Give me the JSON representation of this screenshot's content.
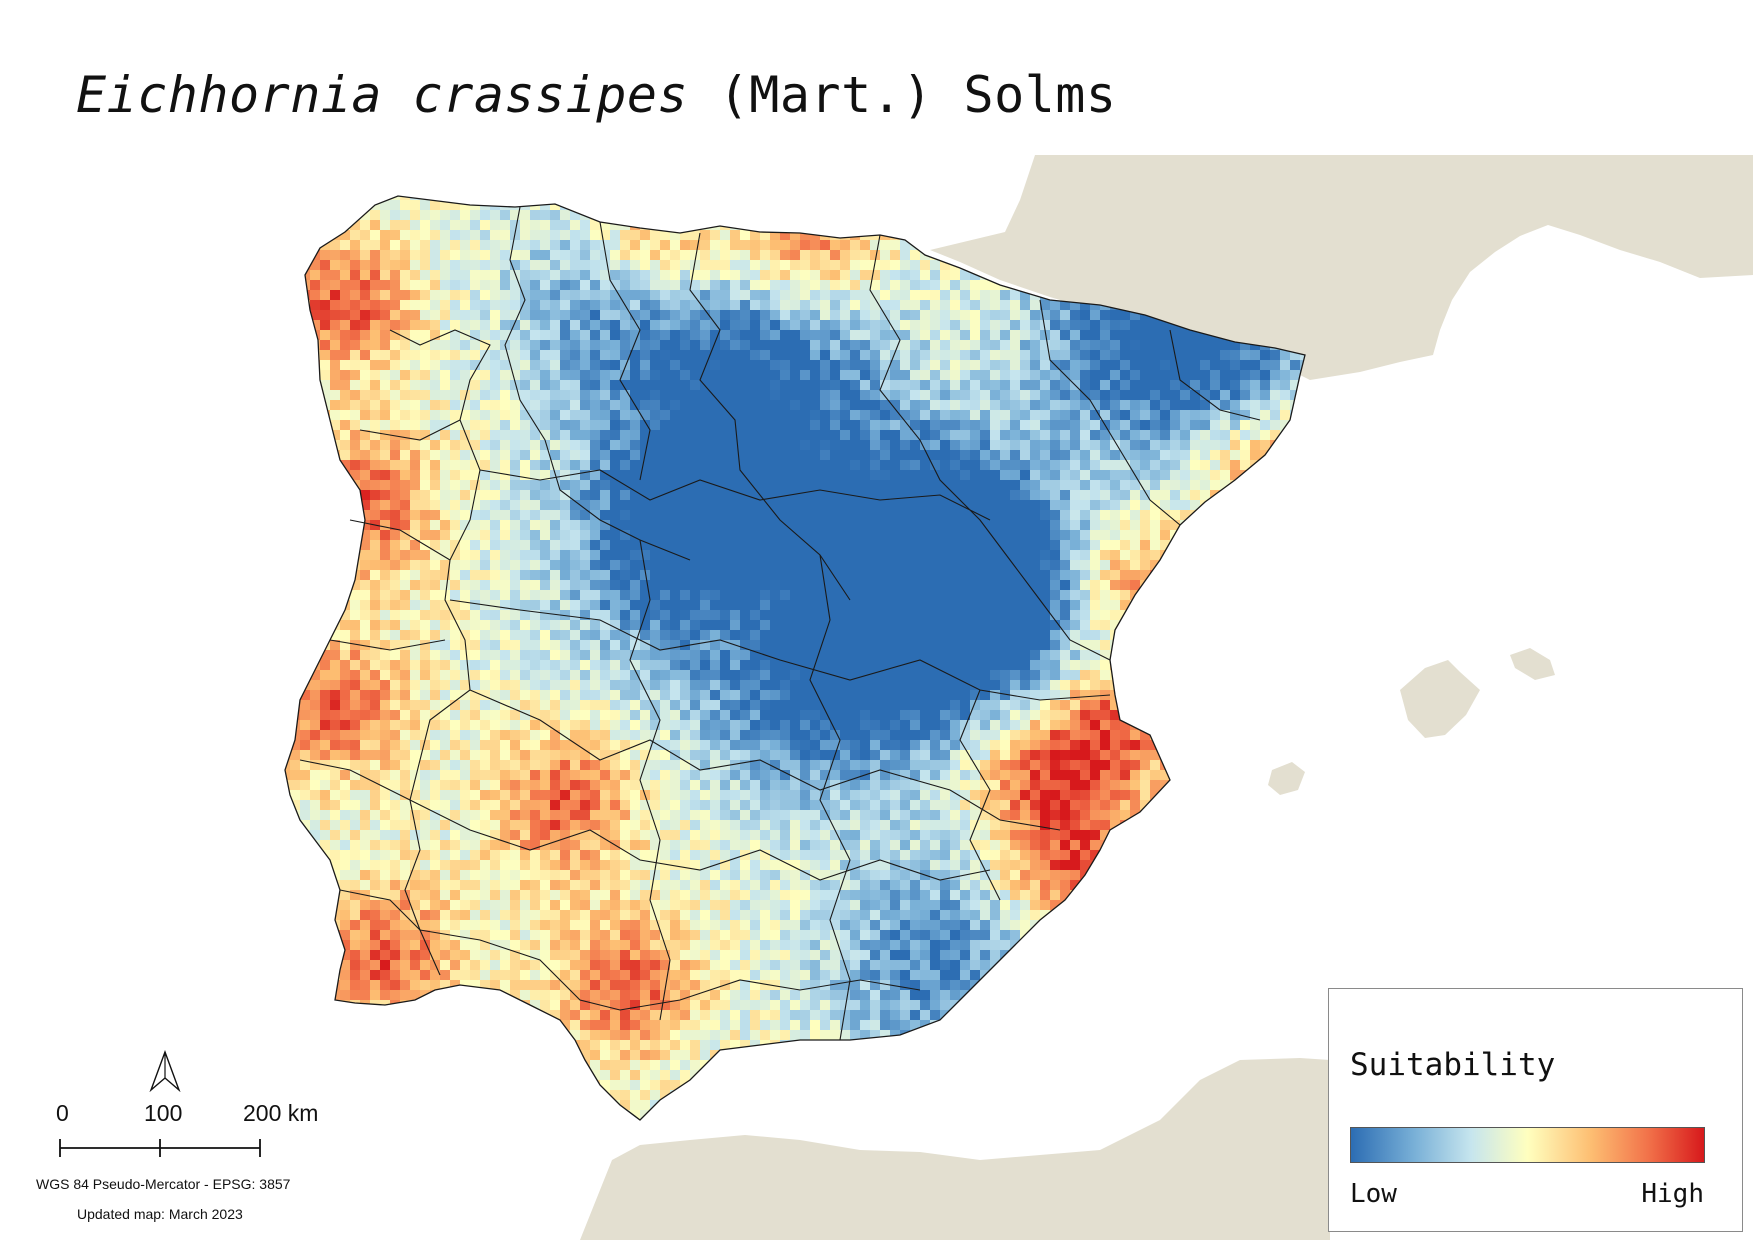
{
  "title": {
    "species_italic": "Eichhornia crassipes",
    "authority": " (Mart.) Solms"
  },
  "legend": {
    "title": "Suitability",
    "low_label": "Low",
    "high_label": "High",
    "colors": [
      "#2c6db3",
      "#79b0d7",
      "#c6e5ee",
      "#ffffbf",
      "#fdbe72",
      "#f2734a",
      "#d7191c"
    ]
  },
  "scale_bar": {
    "labels": [
      "0",
      "100",
      "200 km"
    ]
  },
  "crs_text": "WGS 84 Pseudo-Mercator  - EPSG: 3857",
  "updated_text": "Updated map: March 2023",
  "north_arrow_icon": "north-arrow-icon",
  "colors": {
    "background_land": "#e3dfd0",
    "sea": "#ffffff",
    "borders": "#1a1a1a"
  }
}
